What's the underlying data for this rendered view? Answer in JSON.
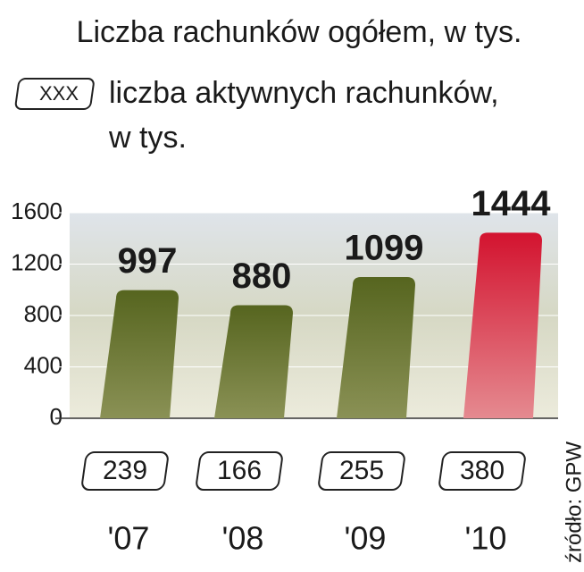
{
  "chart_data": {
    "type": "bar",
    "title": "Liczba rachunków ogółem,  w tys.",
    "categories": [
      "'07",
      "'08",
      "'09",
      "'10"
    ],
    "values": [
      997,
      880,
      1099,
      1444
    ],
    "colors": [
      "#5d6b28",
      "#5d6b28",
      "#5d6b28",
      "#d3132f"
    ],
    "active": {
      "sample": "XXX",
      "label": [
        "liczba aktywnych rachunków,",
        "w tys."
      ],
      "values": [
        239,
        166,
        255,
        380
      ]
    },
    "ylim": [
      0,
      1600
    ],
    "yticks": [
      0,
      400,
      800,
      1200,
      1600
    ],
    "grid": true,
    "source": "źródło: GPW"
  }
}
